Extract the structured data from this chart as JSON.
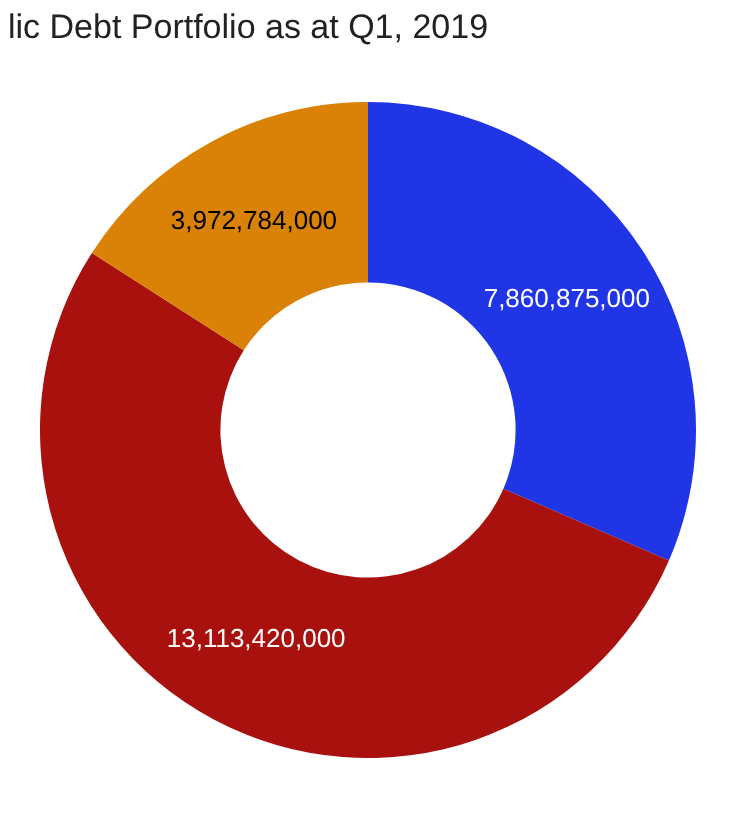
{
  "chart_data": {
    "type": "donut",
    "title": "lic Debt Portfolio as at Q1, 2019",
    "categories": [
      null,
      null,
      null
    ],
    "values": [
      7860875000,
      13113420000,
      3972784000
    ],
    "colors": [
      "#1f35e6",
      "#a8110e",
      "#d98207"
    ],
    "value_labels": [
      "7,860,875,000",
      "13,113,420,000",
      "3,972,784,000"
    ]
  }
}
